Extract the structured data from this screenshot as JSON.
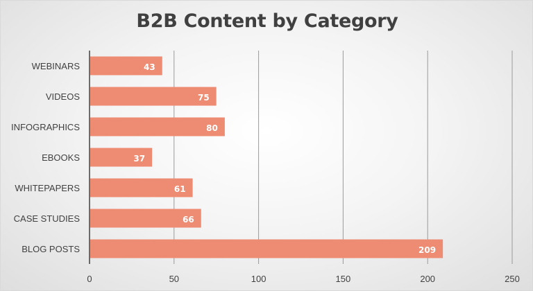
{
  "chart_data": {
    "type": "bar",
    "orientation": "horizontal",
    "title": "B2B Content by Category",
    "xlabel": "",
    "ylabel": "",
    "categories": [
      "WEBINARS",
      "VIDEOS",
      "INFOGRAPHICS",
      "EBOOKS",
      "WHITEPAPERS",
      "CASE STUDIES",
      "BLOG POSTS"
    ],
    "values": [
      43,
      75,
      80,
      37,
      61,
      66,
      209
    ],
    "data_labels": [
      "43",
      "75",
      "80",
      "37",
      "61",
      "66",
      "209"
    ],
    "xlim": [
      0,
      250
    ],
    "xticks": [
      0,
      50,
      100,
      150,
      200,
      250
    ],
    "xtick_labels": [
      "0",
      "50",
      "100",
      "150",
      "200",
      "250"
    ],
    "grid": "vertical",
    "legend": "none",
    "bar_color": "#ee8b73"
  }
}
